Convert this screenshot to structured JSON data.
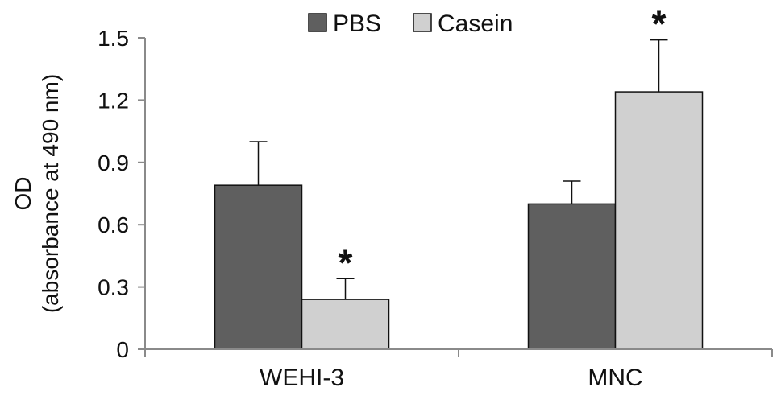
{
  "chart_data": {
    "type": "bar",
    "title": "",
    "xlabel": "",
    "ylabel_line1": "OD",
    "ylabel_line2": "(absorbance at 490 nm)",
    "ylim": [
      0,
      1.5
    ],
    "yticks": [
      "0",
      "0.3",
      "0.6",
      "0.9",
      "1.2",
      "1.5"
    ],
    "categories": [
      "WEHI-3",
      "MNC"
    ],
    "series": [
      {
        "name": "PBS",
        "color": "#5f5f5f",
        "values": [
          0.79,
          0.7
        ],
        "errors": [
          0.21,
          0.11
        ],
        "significance": [
          "",
          ""
        ]
      },
      {
        "name": "Casein",
        "color": "#d0d0d0",
        "values": [
          0.24,
          1.24
        ],
        "errors": [
          0.1,
          0.25
        ],
        "significance": [
          "*",
          "*"
        ]
      }
    ],
    "legend_position": "top-center",
    "grid": false
  }
}
